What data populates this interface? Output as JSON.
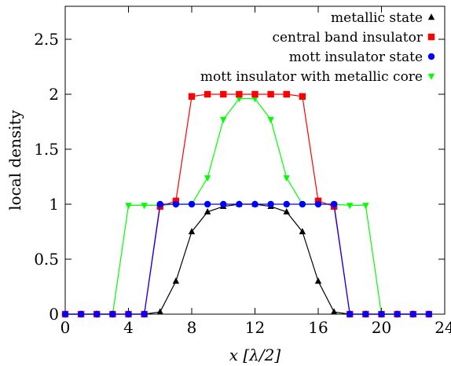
{
  "chart_data": {
    "type": "line",
    "xlabel": "x [λ/2]",
    "ylabel": "local density",
    "xlim": [
      0,
      24
    ],
    "ylim": [
      0,
      2.8
    ],
    "xticks": [
      0,
      4,
      8,
      12,
      16,
      20,
      24
    ],
    "xtick_labels": [
      "0",
      "4",
      "8",
      "12",
      "16",
      "20",
      "24"
    ],
    "yticks": [
      0,
      0.5,
      1,
      1.5,
      2,
      2.5
    ],
    "ytick_labels": [
      "0",
      "0.5",
      "1",
      "1.5",
      "2",
      "2.5"
    ],
    "grid": false,
    "legend_position": "top-right",
    "x": [
      0,
      1,
      2,
      3,
      4,
      5,
      6,
      7,
      8,
      9,
      10,
      11,
      12,
      13,
      14,
      15,
      16,
      17,
      18,
      19,
      20,
      21,
      22,
      23
    ],
    "series": [
      {
        "name": "metallic state",
        "color": "#000000",
        "marker": "triangle-up",
        "values": [
          0,
          0,
          0,
          0,
          0,
          0,
          0.02,
          0.3,
          0.75,
          0.93,
          0.98,
          1.0,
          1.0,
          0.98,
          0.93,
          0.75,
          0.3,
          0.02,
          0,
          0,
          0,
          0,
          0,
          0
        ]
      },
      {
        "name": "central band insulator",
        "color": "#ff0000",
        "marker": "square",
        "values": [
          0,
          0,
          0,
          0,
          0,
          0,
          0.98,
          1.03,
          1.98,
          2.0,
          2.0,
          2.0,
          2.0,
          2.0,
          2.0,
          1.98,
          1.03,
          0.98,
          0,
          0,
          0,
          0,
          0,
          0
        ]
      },
      {
        "name": "mott insulator state",
        "color": "#0000ff",
        "marker": "circle",
        "values": [
          0,
          0,
          0,
          0,
          0,
          0,
          1.0,
          1.0,
          1.0,
          1.0,
          1.0,
          1.0,
          1.0,
          1.0,
          1.0,
          1.0,
          1.0,
          1.0,
          0,
          0,
          0,
          0,
          0,
          0
        ]
      },
      {
        "name": "mott insulator with metallic core",
        "color": "#00ff00",
        "marker": "triangle-down",
        "values": [
          0,
          0,
          0,
          0,
          0.99,
          0.99,
          0.99,
          1.0,
          1.0,
          1.24,
          1.77,
          1.96,
          1.96,
          1.77,
          1.24,
          1.0,
          1.0,
          1.0,
          0.99,
          0.99,
          0,
          0,
          0,
          0
        ]
      }
    ]
  }
}
